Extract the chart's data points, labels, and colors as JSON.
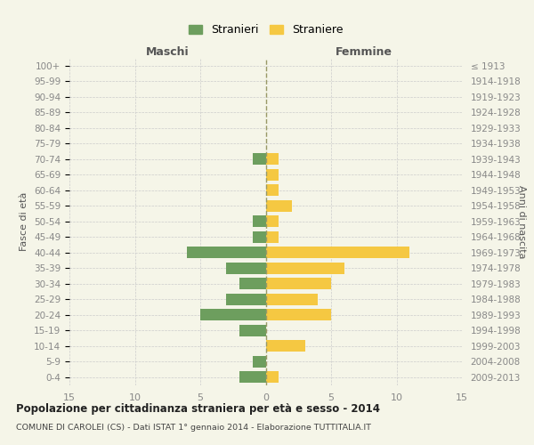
{
  "age_groups": [
    "0-4",
    "5-9",
    "10-14",
    "15-19",
    "20-24",
    "25-29",
    "30-34",
    "35-39",
    "40-44",
    "45-49",
    "50-54",
    "55-59",
    "60-64",
    "65-69",
    "70-74",
    "75-79",
    "80-84",
    "85-89",
    "90-94",
    "95-99",
    "100+"
  ],
  "birth_years": [
    "2009-2013",
    "2004-2008",
    "1999-2003",
    "1994-1998",
    "1989-1993",
    "1984-1988",
    "1979-1983",
    "1974-1978",
    "1969-1973",
    "1964-1968",
    "1959-1963",
    "1954-1958",
    "1949-1953",
    "1944-1948",
    "1939-1943",
    "1934-1938",
    "1929-1933",
    "1924-1928",
    "1919-1923",
    "1914-1918",
    "≤ 1913"
  ],
  "maschi": [
    2,
    1,
    0,
    2,
    5,
    3,
    2,
    3,
    6,
    1,
    1,
    0,
    0,
    0,
    1,
    0,
    0,
    0,
    0,
    0,
    0
  ],
  "femmine": [
    1,
    0,
    3,
    0,
    5,
    4,
    5,
    6,
    11,
    1,
    1,
    2,
    1,
    1,
    1,
    0,
    0,
    0,
    0,
    0,
    0
  ],
  "male_color": "#6d9e5e",
  "female_color": "#f5c842",
  "background_color": "#f5f5e8",
  "grid_color": "#cccccc",
  "title": "Popolazione per cittadinanza straniera per età e sesso - 2014",
  "subtitle": "COMUNE DI CAROLEI (CS) - Dati ISTAT 1° gennaio 2014 - Elaborazione TUTTITALIA.IT",
  "xlabel_left": "Maschi",
  "xlabel_right": "Femmine",
  "ylabel_left": "Fasce di età",
  "ylabel_right": "Anni di nascita",
  "legend_male": "Stranieri",
  "legend_female": "Straniere",
  "xlim": 15,
  "bar_height": 0.75
}
